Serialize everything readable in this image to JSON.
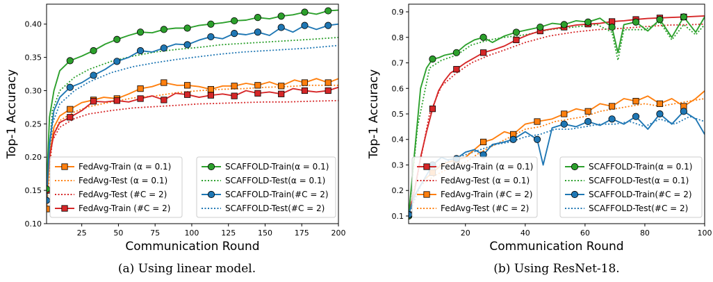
{
  "colors": {
    "green": "#2ca02c",
    "blue": "#1f77b4",
    "orange": "#ff7f0e",
    "red": "#d62728"
  },
  "chart_data": [
    {
      "type": "line",
      "caption": "(a) Using linear model.",
      "xlabel": "Communication Round",
      "ylabel": "Top-1 Accuracy",
      "xlim": [
        1,
        200
      ],
      "ylim": [
        0.1,
        0.43
      ],
      "xticks": [
        25,
        50,
        75,
        100,
        125,
        150,
        175,
        200
      ],
      "yticks": [
        0.1,
        0.15,
        0.2,
        0.25,
        0.3,
        0.35,
        0.4
      ],
      "grid": false,
      "series": [
        {
          "name": "FedAvg-Train (α = 0.1)",
          "color": "orange",
          "style": "solid",
          "marker": "square",
          "x": [
            1,
            3,
            6,
            10,
            17,
            25,
            33,
            40,
            49,
            57,
            65,
            73,
            81,
            90,
            97,
            105,
            113,
            121,
            129,
            137,
            145,
            153,
            161,
            170,
            177,
            185,
            193,
            200
          ],
          "y": [
            0.122,
            0.2,
            0.245,
            0.262,
            0.272,
            0.282,
            0.286,
            0.29,
            0.288,
            0.295,
            0.303,
            0.306,
            0.312,
            0.308,
            0.308,
            0.306,
            0.302,
            0.307,
            0.307,
            0.311,
            0.308,
            0.313,
            0.307,
            0.316,
            0.312,
            0.318,
            0.312,
            0.318
          ]
        },
        {
          "name": "FedAvg-Test (α = 0.1)",
          "color": "orange",
          "style": "dotted",
          "marker": "none",
          "x": [
            1,
            5,
            10,
            20,
            30,
            45,
            60,
            75,
            90,
            105,
            120,
            135,
            150,
            165,
            180,
            200
          ],
          "y": [
            0.122,
            0.23,
            0.255,
            0.268,
            0.276,
            0.283,
            0.289,
            0.292,
            0.297,
            0.3,
            0.302,
            0.303,
            0.305,
            0.306,
            0.308,
            0.308
          ]
        },
        {
          "name": "FedAvg-Train (#C = 2)",
          "color": "red",
          "style": "solid",
          "marker": "square",
          "x": [
            1,
            3,
            6,
            10,
            17,
            25,
            33,
            41,
            49,
            57,
            65,
            73,
            81,
            89,
            97,
            105,
            113,
            121,
            129,
            137,
            145,
            153,
            161,
            169,
            177,
            185,
            193,
            200
          ],
          "y": [
            0.15,
            0.2,
            0.235,
            0.252,
            0.26,
            0.27,
            0.284,
            0.283,
            0.285,
            0.283,
            0.288,
            0.292,
            0.286,
            0.296,
            0.294,
            0.29,
            0.293,
            0.295,
            0.292,
            0.3,
            0.296,
            0.298,
            0.295,
            0.303,
            0.3,
            0.298,
            0.3,
            0.305
          ]
        },
        {
          "name": "FedAvg-Test (#C = 2)",
          "color": "red",
          "style": "dotted",
          "marker": "none",
          "x": [
            1,
            5,
            10,
            20,
            30,
            45,
            60,
            75,
            90,
            105,
            120,
            135,
            150,
            165,
            180,
            200
          ],
          "y": [
            0.15,
            0.225,
            0.245,
            0.258,
            0.265,
            0.27,
            0.274,
            0.276,
            0.278,
            0.28,
            0.281,
            0.282,
            0.283,
            0.283,
            0.284,
            0.285
          ]
        },
        {
          "name": "SCAFFOLD-Train(α = 0.1)",
          "color": "green",
          "style": "solid",
          "marker": "circle",
          "x": [
            1,
            3,
            6,
            10,
            17,
            25,
            33,
            41,
            49,
            57,
            65,
            73,
            81,
            89,
            97,
            105,
            113,
            121,
            129,
            137,
            145,
            153,
            161,
            169,
            177,
            185,
            193,
            200
          ],
          "y": [
            0.152,
            0.26,
            0.3,
            0.33,
            0.345,
            0.352,
            0.36,
            0.37,
            0.377,
            0.383,
            0.388,
            0.387,
            0.392,
            0.394,
            0.394,
            0.398,
            0.4,
            0.402,
            0.405,
            0.406,
            0.41,
            0.408,
            0.412,
            0.414,
            0.418,
            0.415,
            0.42,
            0.421
          ]
        },
        {
          "name": "SCAFFOLD-Test(α = 0.1)",
          "color": "green",
          "style": "dotted",
          "marker": "none",
          "x": [
            1,
            5,
            10,
            20,
            30,
            45,
            60,
            75,
            90,
            105,
            120,
            135,
            150,
            165,
            180,
            200
          ],
          "y": [
            0.152,
            0.27,
            0.3,
            0.32,
            0.332,
            0.344,
            0.352,
            0.358,
            0.362,
            0.365,
            0.369,
            0.371,
            0.373,
            0.375,
            0.377,
            0.38
          ]
        },
        {
          "name": "SCAFFOLD-Train(#C = 2)",
          "color": "blue",
          "style": "solid",
          "marker": "circle",
          "x": [
            1,
            3,
            6,
            10,
            17,
            25,
            33,
            41,
            49,
            57,
            65,
            73,
            81,
            89,
            97,
            105,
            113,
            121,
            129,
            137,
            145,
            153,
            161,
            169,
            177,
            185,
            193,
            200
          ],
          "y": [
            0.135,
            0.22,
            0.27,
            0.29,
            0.305,
            0.312,
            0.323,
            0.332,
            0.344,
            0.35,
            0.36,
            0.358,
            0.364,
            0.37,
            0.369,
            0.376,
            0.381,
            0.378,
            0.386,
            0.384,
            0.388,
            0.383,
            0.395,
            0.388,
            0.398,
            0.392,
            0.398,
            0.4
          ]
        },
        {
          "name": "SCAFFOLD-Test(#C = 2)",
          "color": "blue",
          "style": "dotted",
          "marker": "none",
          "x": [
            1,
            5,
            10,
            20,
            30,
            45,
            60,
            75,
            90,
            105,
            120,
            135,
            150,
            165,
            180,
            200
          ],
          "y": [
            0.135,
            0.25,
            0.28,
            0.3,
            0.313,
            0.327,
            0.336,
            0.342,
            0.347,
            0.351,
            0.355,
            0.358,
            0.36,
            0.362,
            0.364,
            0.368
          ]
        }
      ]
    },
    {
      "type": "line",
      "caption": "(b) Using ResNet-18.",
      "xlabel": "Communication Round",
      "ylabel": "Top-1 Accuracy",
      "xlim": [
        1,
        100
      ],
      "ylim": [
        0.07,
        0.93
      ],
      "xticks": [
        20,
        40,
        60,
        80,
        100
      ],
      "yticks": [
        0.1,
        0.2,
        0.3,
        0.4,
        0.5,
        0.6,
        0.7,
        0.8,
        0.9
      ],
      "grid": false,
      "series": [
        {
          "name": "FedAvg-Train (α = 0.1)",
          "color": "red",
          "style": "solid",
          "marker": "square",
          "x": [
            1,
            3,
            5,
            7,
            9,
            11,
            13,
            15,
            17,
            20,
            23,
            26,
            29,
            33,
            37,
            41,
            45,
            49,
            53,
            57,
            61,
            65,
            69,
            73,
            77,
            81,
            85,
            89,
            93,
            97,
            100
          ],
          "y": [
            0.105,
            0.2,
            0.33,
            0.43,
            0.52,
            0.59,
            0.63,
            0.66,
            0.675,
            0.7,
            0.72,
            0.74,
            0.75,
            0.766,
            0.79,
            0.81,
            0.825,
            0.833,
            0.84,
            0.848,
            0.852,
            0.855,
            0.862,
            0.865,
            0.87,
            0.874,
            0.876,
            0.878,
            0.88,
            0.882,
            0.884
          ]
        },
        {
          "name": "FedAvg-Test (α = 0.1)",
          "color": "red",
          "style": "dotted",
          "marker": "none",
          "x": [
            1,
            4,
            8,
            12,
            17,
            22,
            28,
            33,
            40,
            48,
            56,
            64,
            72,
            80,
            88,
            96,
            100
          ],
          "y": [
            0.105,
            0.26,
            0.5,
            0.61,
            0.66,
            0.7,
            0.73,
            0.75,
            0.78,
            0.805,
            0.82,
            0.83,
            0.835,
            0.842,
            0.848,
            0.85,
            0.852
          ]
        },
        {
          "name": "FedAvg-Train (#C = 2)",
          "color": "orange",
          "style": "solid",
          "marker": "square",
          "x": [
            1,
            3,
            6,
            9,
            12,
            14,
            17,
            20,
            23,
            26,
            29,
            33,
            36,
            40,
            44,
            49,
            53,
            57,
            61,
            65,
            69,
            73,
            77,
            81,
            85,
            89,
            93,
            97,
            100
          ],
          "y": [
            0.105,
            0.18,
            0.24,
            0.27,
            0.3,
            0.31,
            0.32,
            0.33,
            0.36,
            0.39,
            0.4,
            0.43,
            0.42,
            0.46,
            0.47,
            0.48,
            0.5,
            0.52,
            0.51,
            0.54,
            0.53,
            0.56,
            0.55,
            0.57,
            0.54,
            0.56,
            0.53,
            0.56,
            0.59
          ]
        },
        {
          "name": "FedAvg-Test (#C = 2)",
          "color": "orange",
          "style": "dotted",
          "marker": "none",
          "x": [
            1,
            5,
            10,
            15,
            20,
            25,
            30,
            35,
            40,
            45,
            50,
            55,
            60,
            65,
            70,
            75,
            80,
            85,
            90,
            95,
            100
          ],
          "y": [
            0.105,
            0.22,
            0.26,
            0.29,
            0.31,
            0.35,
            0.38,
            0.41,
            0.44,
            0.45,
            0.47,
            0.48,
            0.49,
            0.51,
            0.52,
            0.53,
            0.54,
            0.53,
            0.54,
            0.55,
            0.56
          ]
        },
        {
          "name": "SCAFFOLD-Train(α = 0.1)",
          "color": "green",
          "style": "solid",
          "marker": "circle",
          "x": [
            1,
            3,
            5,
            7,
            9,
            11,
            13,
            15,
            17,
            20,
            23,
            26,
            29,
            33,
            37,
            41,
            45,
            49,
            53,
            57,
            61,
            65,
            69,
            71,
            73,
            77,
            81,
            85,
            89,
            93,
            97,
            100
          ],
          "y": [
            0.1,
            0.35,
            0.6,
            0.68,
            0.715,
            0.72,
            0.73,
            0.735,
            0.74,
            0.77,
            0.79,
            0.8,
            0.78,
            0.805,
            0.82,
            0.83,
            0.84,
            0.855,
            0.85,
            0.865,
            0.86,
            0.875,
            0.84,
            0.74,
            0.85,
            0.86,
            0.825,
            0.87,
            0.8,
            0.88,
            0.82,
            0.88
          ]
        },
        {
          "name": "SCAFFOLD-Test(α = 0.1)",
          "color": "green",
          "style": "dotted",
          "marker": "none",
          "x": [
            1,
            4,
            8,
            12,
            17,
            22,
            28,
            33,
            40,
            48,
            56,
            64,
            69,
            71,
            73,
            80,
            85,
            89,
            93,
            97,
            100
          ],
          "y": [
            0.1,
            0.45,
            0.68,
            0.71,
            0.73,
            0.77,
            0.79,
            0.8,
            0.81,
            0.83,
            0.84,
            0.85,
            0.82,
            0.71,
            0.83,
            0.83,
            0.86,
            0.79,
            0.85,
            0.81,
            0.85
          ]
        },
        {
          "name": "SCAFFOLD-Train(#C = 2)",
          "color": "blue",
          "style": "solid",
          "marker": "circle",
          "x": [
            1,
            3,
            6,
            9,
            12,
            14,
            17,
            20,
            23,
            26,
            29,
            33,
            36,
            40,
            44,
            46,
            49,
            53,
            57,
            61,
            65,
            69,
            73,
            77,
            81,
            85,
            89,
            93,
            97,
            100
          ],
          "y": [
            0.105,
            0.18,
            0.24,
            0.3,
            0.33,
            0.32,
            0.325,
            0.35,
            0.36,
            0.34,
            0.38,
            0.39,
            0.4,
            0.43,
            0.4,
            0.3,
            0.445,
            0.46,
            0.45,
            0.47,
            0.455,
            0.48,
            0.46,
            0.49,
            0.44,
            0.5,
            0.46,
            0.51,
            0.48,
            0.42
          ]
        },
        {
          "name": "SCAFFOLD-Test(#C = 2)",
          "color": "blue",
          "style": "dotted",
          "marker": "none",
          "x": [
            1,
            5,
            10,
            15,
            20,
            25,
            30,
            35,
            40,
            45,
            50,
            55,
            60,
            65,
            70,
            75,
            80,
            85,
            90,
            95,
            100
          ],
          "y": [
            0.105,
            0.22,
            0.29,
            0.32,
            0.34,
            0.36,
            0.38,
            0.39,
            0.41,
            0.42,
            0.44,
            0.44,
            0.45,
            0.46,
            0.46,
            0.47,
            0.45,
            0.48,
            0.46,
            0.49,
            0.47
          ]
        }
      ]
    }
  ]
}
